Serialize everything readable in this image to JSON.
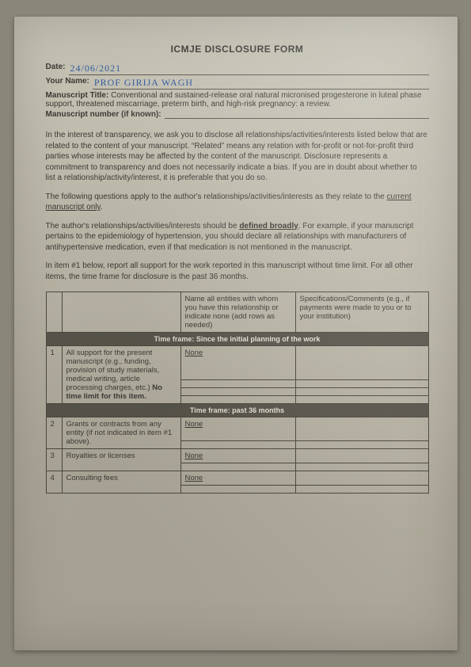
{
  "form_title": "ICMJE DISCLOSURE FORM",
  "fields": {
    "date_label": "Date:",
    "date_value": "24/06/2021",
    "name_label": "Your Name:",
    "name_value": "PROF  GIRIJA  WAGH",
    "manuscript_title_label": "Manuscript Title:",
    "manuscript_title_value": "Conventional and sustained-release oral natural micronised progesterone in luteal phase support, threatened miscarriage, preterm birth, and high-risk pregnancy: a review.",
    "manuscript_number_label": "Manuscript number (if known):",
    "manuscript_number_value": ""
  },
  "paragraphs": {
    "p1": "In the interest of transparency, we ask you to disclose all relationships/activities/interests listed below that are related to the content of your manuscript. “Related” means any relation with for-profit or not-for-profit third parties whose interests may be affected by the content of the manuscript. Disclosure represents a commitment to transparency and does not necessarily indicate a bias. If you are in doubt about whether to list a relationship/activity/interest, it is preferable that you do so.",
    "p2_a": "The following questions apply to the author's relationships/activities/interests as they relate to the ",
    "p2_u": "current manuscript only",
    "p2_b": ".",
    "p3_a": "The author's relationships/activities/interests should be ",
    "p3_u": "defined broadly",
    "p3_b": ". For example, if your manuscript pertains to the epidemiology of hypertension, you should declare all relationships with manufacturers of antihypertensive medication, even if that medication is not mentioned in the manuscript.",
    "p4": "In item #1 below, report all support for the work reported in this manuscript without time limit.  For all other items, the time frame for disclosure is the past 36 months."
  },
  "table": {
    "header_entities": "Name all entities with whom you have this relationship or indicate none (add rows as needed)",
    "header_spec": "Specifications/Comments (e.g., if payments were made to you or to your institution)",
    "tf1": "Time frame: Since the initial planning of the work",
    "tf2": "Time frame: past 36 months",
    "rows": [
      {
        "n": "1",
        "desc_a": "All support for the present manuscript (e.g., funding, provision of study materials, medical writing, article processing charges, etc.) ",
        "desc_b": "No time limit for this item.",
        "val": "None"
      },
      {
        "n": "2",
        "desc_a": "Grants or contracts from any entity (if not indicated in item #1 above).",
        "desc_b": "",
        "val": "None"
      },
      {
        "n": "3",
        "desc_a": "Royalties or licenses",
        "desc_b": "",
        "val": "None"
      },
      {
        "n": "4",
        "desc_a": "Consulting fees",
        "desc_b": "",
        "val": "None"
      }
    ]
  }
}
